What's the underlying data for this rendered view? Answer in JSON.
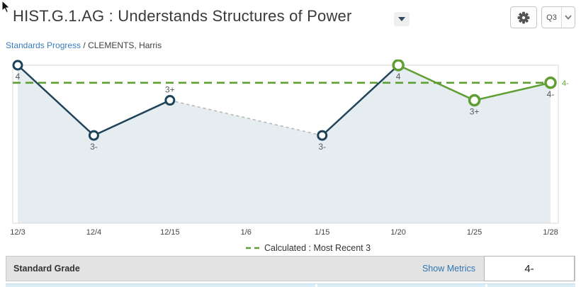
{
  "header": {
    "title": "HIST.G.1.AG : Understands Structures of Power",
    "quarter_selector": {
      "value": "Q3"
    }
  },
  "breadcrumb": {
    "link": "Standards Progress",
    "separator": " / ",
    "current": "CLEMENTS, Harris"
  },
  "chart_data": {
    "type": "line",
    "title": "Standards progress over time for HIST.G.1.AG",
    "x_categories": [
      "12/3",
      "12/4",
      "12/15",
      "1/6",
      "1/15",
      "1/20",
      "1/25",
      "1/28"
    ],
    "grade_scale": [
      "4",
      "4-",
      "3+",
      "3",
      "3-",
      "2+",
      "2",
      "2-",
      "1+",
      "1"
    ],
    "points": [
      {
        "date": "12/3",
        "x_index": 0,
        "grade": "4",
        "recent": false,
        "label_position": "below"
      },
      {
        "date": "12/4",
        "x_index": 1,
        "grade": "3-",
        "recent": false,
        "label_position": "below"
      },
      {
        "date": "12/15",
        "x_index": 2,
        "grade": "3+",
        "recent": false,
        "label_position": "above"
      },
      {
        "date": "1/15",
        "x_index": 4,
        "grade": "3-",
        "recent": false,
        "label_position": "below"
      },
      {
        "date": "1/20",
        "x_index": 5,
        "grade": "4",
        "recent": true,
        "label_position": "below"
      },
      {
        "date": "1/25",
        "x_index": 6,
        "grade": "3+",
        "recent": true,
        "label_position": "below"
      },
      {
        "date": "1/28",
        "x_index": 7,
        "grade": "4-",
        "recent": true,
        "label_position": "below"
      }
    ],
    "missing_dates": [
      "1/6"
    ],
    "calculated_line": {
      "grade": "4-",
      "label": "4-",
      "legend": "Calculated : Most Recent 3"
    },
    "colors": {
      "line": "#1f4459",
      "recent_line": "#5f9e32",
      "gap_connector": "#b5b5b5",
      "area_fill": "#e6edf1",
      "calculated_line": "#5f9e32"
    },
    "layout": {
      "legend_position": "bottom-center",
      "grid": "off",
      "y_axis_labels": "hidden"
    }
  },
  "footer": {
    "label": "Standard Grade",
    "metrics_link": "Show Metrics",
    "grade_value": "4-"
  }
}
